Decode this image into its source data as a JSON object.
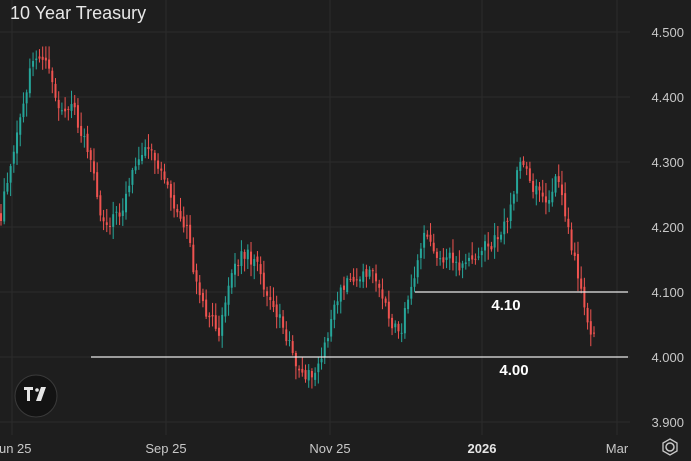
{
  "chart_data": {
    "type": "candlestick",
    "title": "10 Year Treasury",
    "ylim": [
      3.9,
      4.5
    ],
    "yticks": [
      "4.500",
      "4.400",
      "4.300",
      "4.200",
      "4.100",
      "4.000",
      "3.900"
    ],
    "xticks": [
      "Jun 25",
      "Sep 25",
      "Nov 25",
      "2026",
      "Mar"
    ],
    "colors": {
      "up": "#26a69a",
      "down": "#ef5350",
      "background": "#1e1e1e"
    },
    "levels": [
      {
        "value": 4.1,
        "label": "4.10"
      },
      {
        "value": 4.0,
        "label": "4.00"
      }
    ],
    "waypoints": [
      [
        0,
        4.22
      ],
      [
        3,
        4.3
      ],
      [
        6,
        4.36
      ],
      [
        9,
        4.44
      ],
      [
        12,
        4.47
      ],
      [
        15,
        4.45
      ],
      [
        18,
        4.38
      ],
      [
        22,
        4.39
      ],
      [
        25,
        4.34
      ],
      [
        28,
        4.31
      ],
      [
        32,
        4.2
      ],
      [
        37,
        4.22
      ],
      [
        42,
        4.3
      ],
      [
        45,
        4.33
      ],
      [
        50,
        4.28
      ],
      [
        55,
        4.22
      ],
      [
        58,
        4.2
      ],
      [
        60,
        4.13
      ],
      [
        64,
        4.07
      ],
      [
        68,
        4.04
      ],
      [
        72,
        4.13
      ],
      [
        76,
        4.16
      ],
      [
        80,
        4.14
      ],
      [
        84,
        4.08
      ],
      [
        88,
        4.05
      ],
      [
        92,
        3.99
      ],
      [
        96,
        3.97
      ],
      [
        100,
        4.0
      ],
      [
        104,
        4.08
      ],
      [
        108,
        4.12
      ],
      [
        112,
        4.12
      ],
      [
        116,
        4.13
      ],
      [
        120,
        4.08
      ],
      [
        124,
        4.03
      ],
      [
        128,
        4.1
      ],
      [
        132,
        4.18
      ],
      [
        136,
        4.16
      ],
      [
        140,
        4.15
      ],
      [
        144,
        4.14
      ],
      [
        148,
        4.16
      ],
      [
        152,
        4.17
      ],
      [
        156,
        4.19
      ],
      [
        159,
        4.23
      ],
      [
        162,
        4.3
      ],
      [
        166,
        4.26
      ],
      [
        170,
        4.24
      ],
      [
        174,
        4.28
      ],
      [
        176,
        4.22
      ],
      [
        179,
        4.15
      ],
      [
        181,
        4.1
      ],
      [
        183,
        4.05
      ],
      [
        185,
        4.03
      ]
    ]
  }
}
